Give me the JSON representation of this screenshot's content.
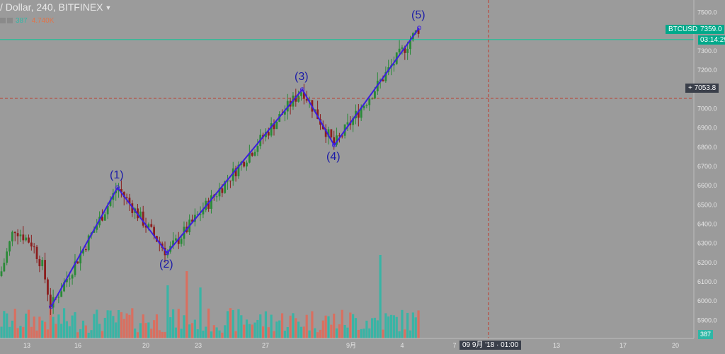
{
  "header": {
    "title": "/ Dollar, 240, BITFINEX",
    "volume_value": "387",
    "volume_ma": "4.740K"
  },
  "price_axis": {
    "ticks": [
      "7500.0",
      "7400.0",
      "7300.0",
      "7200.0",
      "7100.0",
      "7000.0",
      "6900.0",
      "6800.0",
      "6700.0",
      "6600.0",
      "6500.0",
      "6400.0",
      "6300.0",
      "6200.0",
      "6100.0",
      "6000.0",
      "5900.0"
    ]
  },
  "time_axis": {
    "ticks": [
      "13",
      "16",
      "20",
      "23",
      "27",
      "9月",
      "4",
      "7",
      "13",
      "17",
      "20"
    ]
  },
  "tags": {
    "symbol": "BTCUSD",
    "last_price": "7359.0",
    "countdown": "03:14:29",
    "crosshair_price": "7053.8",
    "crosshair_time": "09 9月 '18 · 01:00",
    "volume_last": "387"
  },
  "colors": {
    "background": "#9b9b9b",
    "up": "#2a8a38",
    "down": "#8b1e1e",
    "vol_up": "#2fb7a6",
    "vol_down": "#e06a5a",
    "wave_line": "#3b1ee0",
    "last_price_line": "#00c896",
    "crosshair": "#c0392b"
  },
  "chart_data": {
    "type": "candlestick",
    "symbol": "BTCUSD",
    "exchange": "BITFINEX",
    "interval": "240",
    "ylim": [
      5850,
      7550
    ],
    "last_price": 7359.0,
    "crosshair_price": 7053.8,
    "elliott_waves": [
      {
        "label": "",
        "date": "Aug 14",
        "price": 5970
      },
      {
        "label": "(1)",
        "date": "Aug 18",
        "price": 6590
      },
      {
        "label": "(2)",
        "date": "Aug 21",
        "price": 6250
      },
      {
        "label": "(3)",
        "date": "Aug 28",
        "price": 7100
      },
      {
        "label": "(4)",
        "date": "Aug 30",
        "price": 6810
      },
      {
        "label": "(5)",
        "date": "Sep 5",
        "price": 7420
      }
    ]
  }
}
